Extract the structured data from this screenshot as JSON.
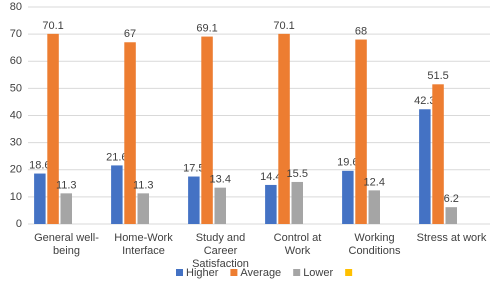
{
  "chart_data": {
    "type": "bar",
    "categories": [
      "General well-being",
      "Home-Work Interface",
      "Study and Career Satisfaction",
      "Control at Work",
      "Working Conditions",
      "Stress at work"
    ],
    "series": [
      {
        "name": "Higher",
        "color": "#4472c4",
        "values": [
          18.6,
          21.6,
          17.5,
          14.4,
          19.6,
          42.3
        ]
      },
      {
        "name": "Average",
        "color": "#ed7d31",
        "values": [
          70.1,
          67,
          69.1,
          70.1,
          68,
          51.5
        ]
      },
      {
        "name": "Lower",
        "color": "#a5a5a5",
        "values": [
          11.3,
          11.3,
          13.4,
          15.5,
          12.4,
          6.2
        ]
      },
      {
        "name": null,
        "color": "#ffc000",
        "values": [
          null,
          null,
          null,
          null,
          null,
          null
        ]
      }
    ],
    "ylim": [
      0,
      80
    ],
    "yticks": [
      0,
      10,
      20,
      30,
      40,
      50,
      60,
      70,
      80
    ],
    "grid": true,
    "legend": "bottom"
  }
}
